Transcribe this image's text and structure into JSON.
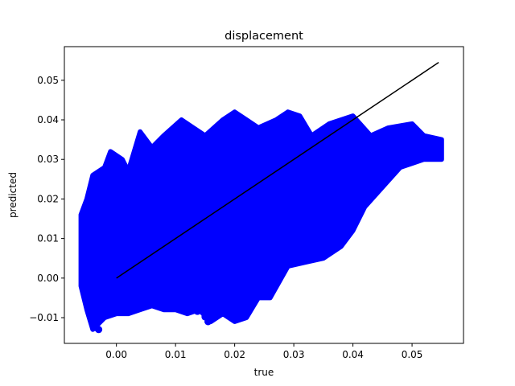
{
  "chart_data": {
    "type": "scatter",
    "title": "displacement",
    "xlabel": "true",
    "ylabel": "predicted",
    "xlim": [
      -0.0088,
      0.0587
    ],
    "ylim": [
      -0.0165,
      0.0585
    ],
    "grid": false,
    "legend": "none",
    "xticks": [
      0.0,
      0.01,
      0.02,
      0.03,
      0.04,
      0.05
    ],
    "xtick_labels": [
      "0.00",
      "0.01",
      "0.02",
      "0.03",
      "0.04",
      "0.05"
    ],
    "yticks": [
      -0.01,
      0.0,
      0.01,
      0.02,
      0.03,
      0.04,
      0.05
    ],
    "ytick_labels": [
      "−0.01",
      "0.00",
      "0.01",
      "0.02",
      "0.03",
      "0.04",
      "0.05"
    ],
    "scatter_color": "#0000ff",
    "line_color": "#000000",
    "scatter_envelope_upper": [
      [
        -0.006,
        0.016
      ],
      [
        -0.005,
        0.02
      ],
      [
        -0.004,
        0.026
      ],
      [
        -0.002,
        0.028
      ],
      [
        -0.001,
        0.032
      ],
      [
        0.001,
        0.03
      ],
      [
        0.002,
        0.027
      ],
      [
        0.004,
        0.037
      ],
      [
        0.006,
        0.033
      ],
      [
        0.008,
        0.036
      ],
      [
        0.011,
        0.04
      ],
      [
        0.013,
        0.038
      ],
      [
        0.015,
        0.036
      ],
      [
        0.018,
        0.04
      ],
      [
        0.02,
        0.042
      ],
      [
        0.022,
        0.04
      ],
      [
        0.024,
        0.038
      ],
      [
        0.027,
        0.04
      ],
      [
        0.029,
        0.042
      ],
      [
        0.031,
        0.041
      ],
      [
        0.033,
        0.036
      ],
      [
        0.036,
        0.039
      ],
      [
        0.04,
        0.041
      ],
      [
        0.043,
        0.036
      ],
      [
        0.046,
        0.038
      ],
      [
        0.05,
        0.039
      ],
      [
        0.052,
        0.036
      ],
      [
        0.055,
        0.035
      ],
      [
        0.055,
        0.031
      ]
    ],
    "scatter_envelope_lower": [
      [
        0.055,
        0.03
      ],
      [
        0.052,
        0.03
      ],
      [
        0.048,
        0.028
      ],
      [
        0.045,
        0.023
      ],
      [
        0.042,
        0.018
      ],
      [
        0.04,
        0.012
      ],
      [
        0.038,
        0.008
      ],
      [
        0.035,
        0.005
      ],
      [
        0.032,
        0.004
      ],
      [
        0.029,
        0.003
      ],
      [
        0.026,
        -0.005
      ],
      [
        0.024,
        -0.005
      ],
      [
        0.022,
        -0.01
      ],
      [
        0.02,
        -0.011
      ],
      [
        0.018,
        -0.009
      ],
      [
        0.016,
        -0.011
      ],
      [
        0.014,
        -0.008
      ],
      [
        0.012,
        -0.009
      ],
      [
        0.01,
        -0.008
      ],
      [
        0.008,
        -0.008
      ],
      [
        0.006,
        -0.007
      ],
      [
        0.004,
        -0.008
      ],
      [
        0.002,
        -0.009
      ],
      [
        0.0,
        -0.009
      ],
      [
        -0.002,
        -0.01
      ],
      [
        -0.004,
        -0.013
      ],
      [
        -0.005,
        -0.008
      ],
      [
        -0.006,
        -0.002
      ],
      [
        -0.006,
        0.01
      ]
    ],
    "points": [
      [
        0.0137,
        -0.0084
      ],
      [
        0.015,
        -0.0098
      ],
      [
        0.0155,
        -0.011
      ],
      [
        0.009,
        -0.0075
      ],
      [
        0.0072,
        -0.007
      ],
      [
        0.0128,
        -0.0068
      ],
      [
        0.0055,
        -0.0065
      ],
      [
        0.0035,
        -0.007
      ],
      [
        0.0018,
        -0.008
      ],
      [
        -0.003,
        -0.013
      ],
      [
        -0.0035,
        -0.0125
      ],
      [
        -0.0025,
        -0.01
      ],
      [
        0.0108,
        -0.006
      ],
      [
        0.0175,
        -0.008
      ],
      [
        0.0195,
        -0.0095
      ],
      [
        0.021,
        -0.009
      ]
    ],
    "lines": [
      {
        "x": [
          0.0,
          0.0545
        ],
        "y": [
          0.0,
          0.0545
        ]
      }
    ]
  }
}
